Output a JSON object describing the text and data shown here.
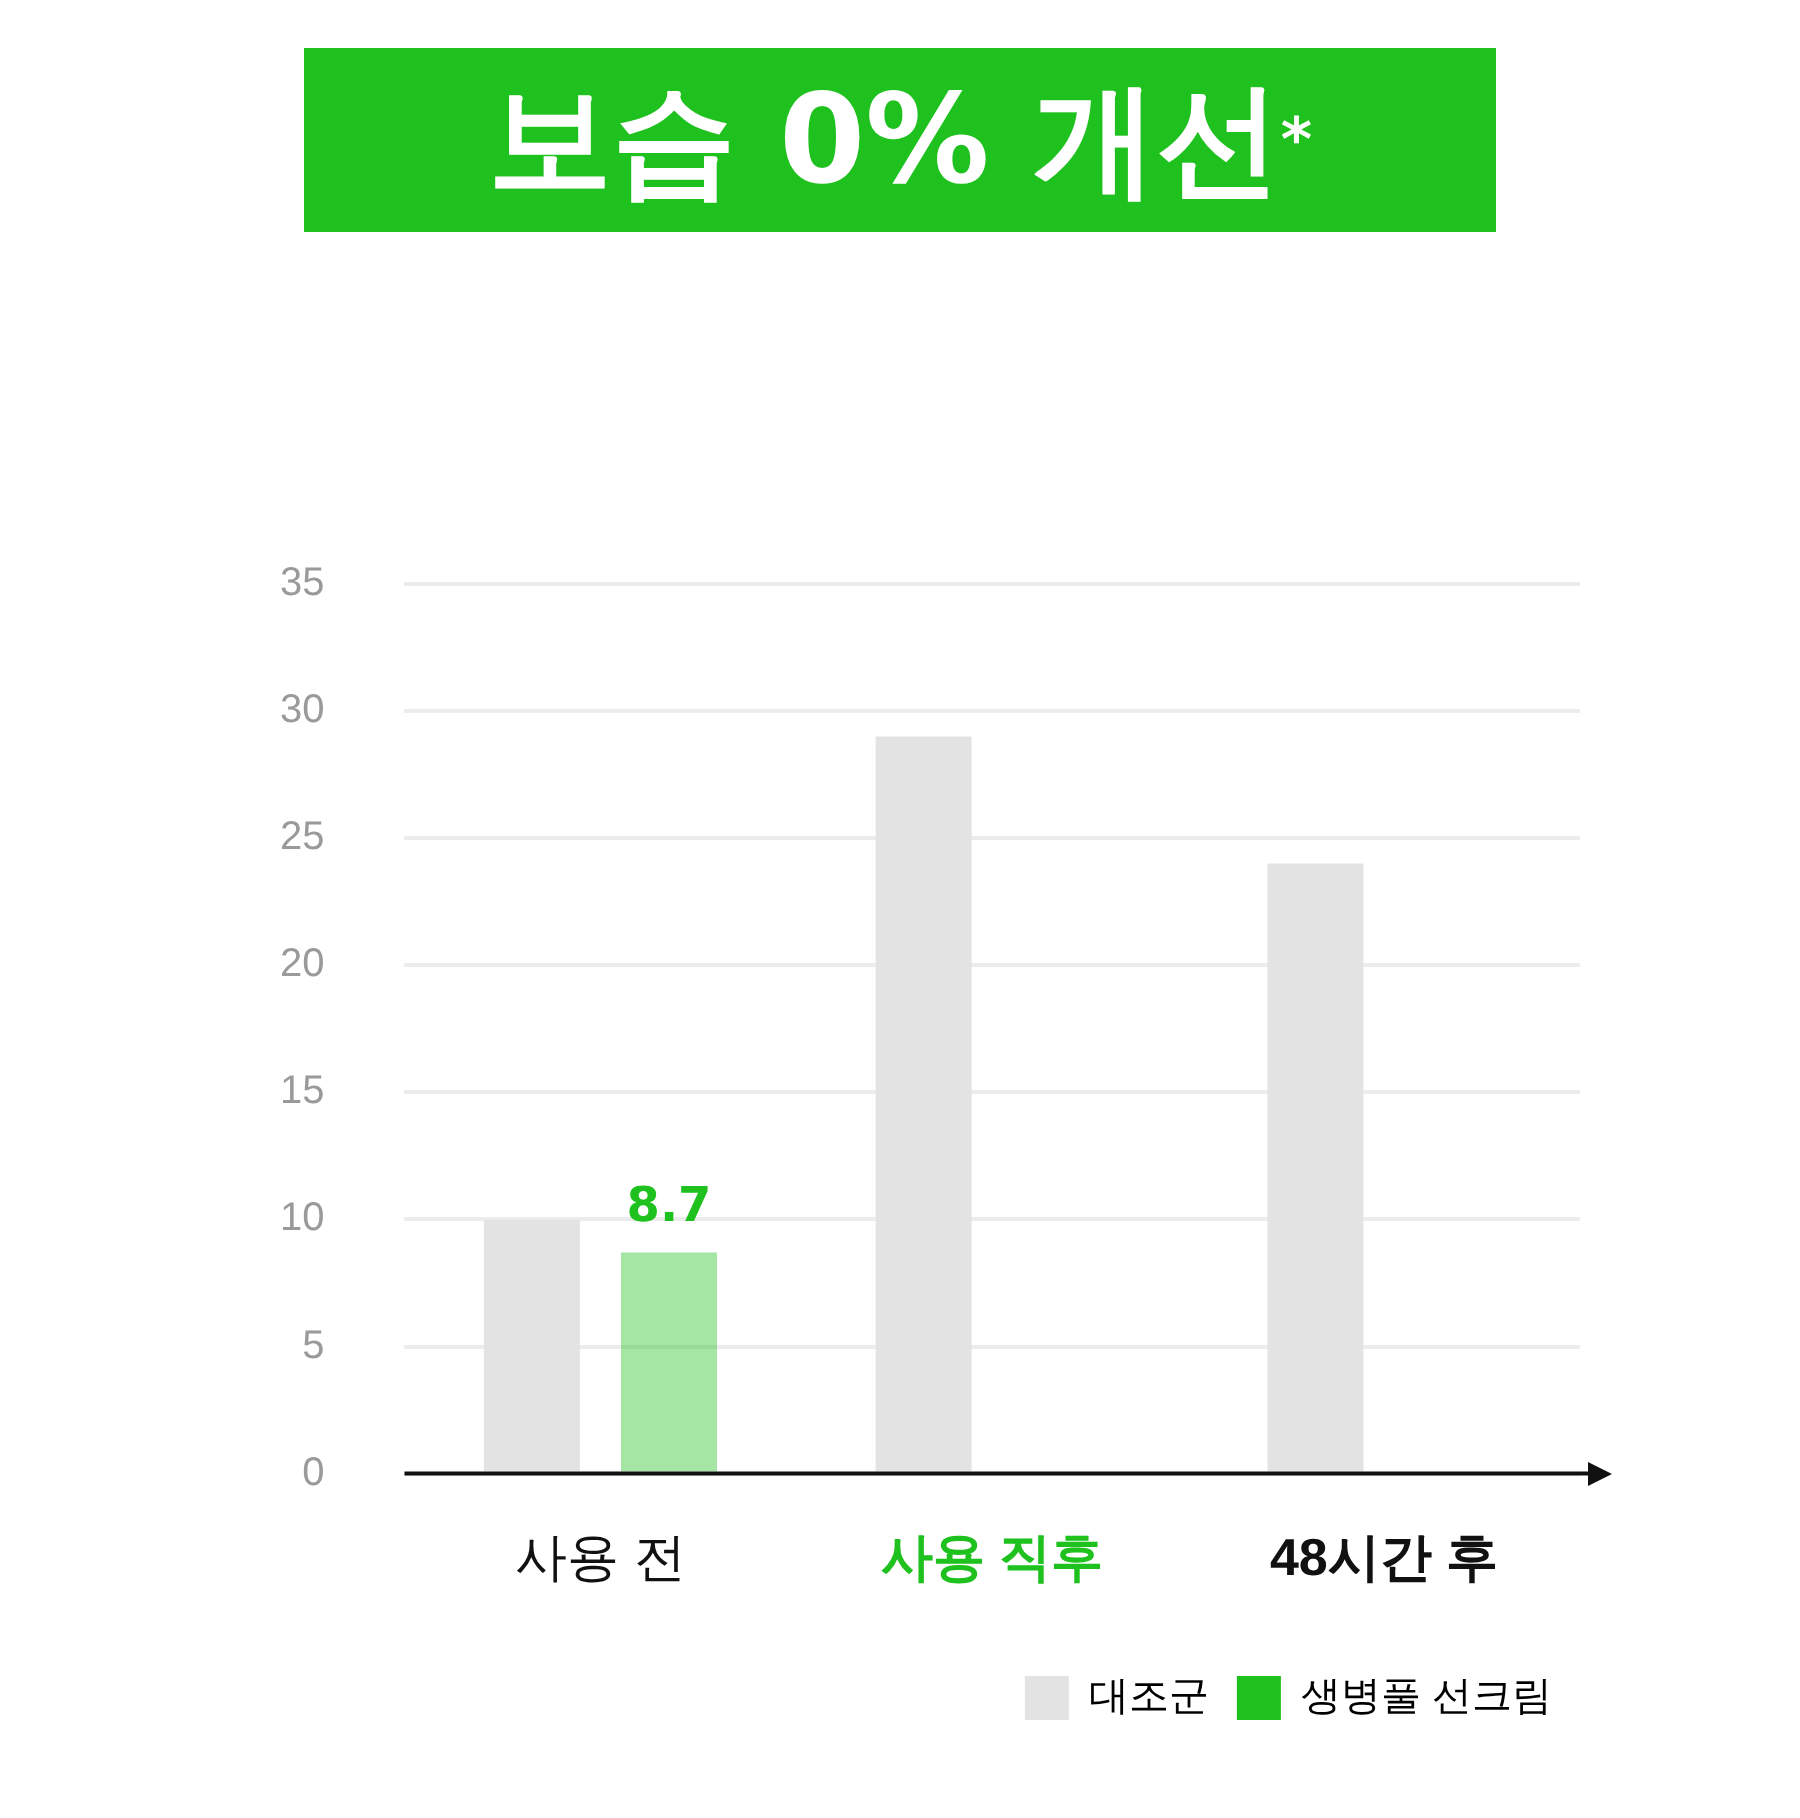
{
  "chart_data": {
    "type": "bar",
    "title": "보습 0% 개선$^{*}$",
    "categories": [
      "사용 전",
      "사용 직후",
      "48시간 후"
    ],
    "series": [
      {
        "name": "대조군",
        "color": "#e3e3e3",
        "values": [
          10,
          29,
          24
        ]
      },
      {
        "name": "생병풀 선크림",
        "color": "#1fc11f",
        "values": [
          8.7,
          null,
          null
        ],
        "value_labels": [
          "8.7",
          null,
          null
        ]
      }
    ],
    "ylim": [
      0,
      35
    ],
    "yticks": [
      0,
      5,
      10,
      15,
      20,
      25,
      30,
      35
    ],
    "grid": "y",
    "legend": "bottom right"
  }
}
